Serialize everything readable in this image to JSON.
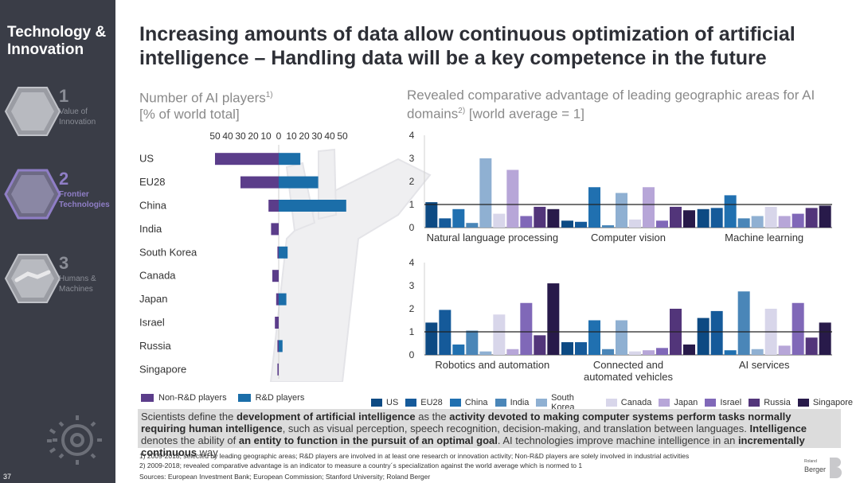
{
  "sidebar": {
    "title": "Technology & Innovation",
    "items": [
      {
        "num": "1",
        "label": "Value of Innovation"
      },
      {
        "num": "2",
        "label": "Frontier Technologies"
      },
      {
        "num": "3",
        "label": "Humans & Machines"
      }
    ],
    "page_number": "37"
  },
  "title": "Increasing amounts of data allow continuous optimization of artificial intelligence – Handling data will be a key competence in the future",
  "left_chart": {
    "title_line1": "Number of AI players",
    "title_sup": "1)",
    "title_line2": "[% of world total]"
  },
  "right_chart": {
    "title_line1": "Revealed comparative advantage of leading geographic areas for AI",
    "title_line2_a": "domains",
    "title_sup": "2)",
    "title_line2_b": " [world average = 1]"
  },
  "chart_data": [
    {
      "type": "bar",
      "orientation": "horizontal-diverging",
      "categories": [
        "US",
        "EU28",
        "China",
        "India",
        "South Korea",
        "Canada",
        "Japan",
        "Israel",
        "Russia",
        "Singapore"
      ],
      "axis_ticks": [
        "50",
        "40",
        "30",
        "20",
        "10",
        "0",
        "10",
        "20",
        "30",
        "40",
        "50"
      ],
      "xlim": [
        -50,
        50
      ],
      "series": [
        {
          "name": "Non-R&D players",
          "color": "#5b3d8a",
          "values": [
            50,
            30,
            8,
            6,
            1,
            5,
            2,
            3,
            1,
            1
          ]
        },
        {
          "name": "R&D players",
          "color": "#1b6ea9",
          "values": [
            17,
            31,
            53,
            0,
            7,
            0,
            6,
            0,
            3,
            0
          ]
        }
      ]
    },
    {
      "type": "bar",
      "categories": [
        "Natural language processing",
        "Computer vision",
        "Machine learning",
        "Robotics and automation",
        "Connected and automated vehicles",
        "AI services"
      ],
      "ylim": [
        0,
        4
      ],
      "yticks": [
        "0",
        "1",
        "2",
        "3",
        "4"
      ],
      "reference_line": 1,
      "series": [
        {
          "name": "US",
          "color": "#0d4a83",
          "values": [
            1.1,
            0.3,
            0.8,
            1.4,
            0.55,
            1.6
          ]
        },
        {
          "name": "EU28",
          "color": "#155a9a",
          "values": [
            0.4,
            0.25,
            0.85,
            1.95,
            0.55,
            1.9
          ]
        },
        {
          "name": "China",
          "color": "#2070b0",
          "values": [
            0.8,
            1.75,
            1.4,
            0.45,
            1.5,
            0.2
          ]
        },
        {
          "name": "India",
          "color": "#4a86b8",
          "values": [
            0.2,
            0.1,
            0.4,
            1.05,
            0.25,
            2.75
          ]
        },
        {
          "name": "South Korea",
          "color": "#8fb0d2",
          "values": [
            3.0,
            1.5,
            0.5,
            0.15,
            1.5,
            0.25
          ]
        },
        {
          "name": "Canada",
          "color": "#d8d6ea",
          "values": [
            0.6,
            0.35,
            0.9,
            1.75,
            0.15,
            2.0
          ]
        },
        {
          "name": "Japan",
          "color": "#b7a6d8",
          "values": [
            2.5,
            1.75,
            0.5,
            0.25,
            0.2,
            0.4
          ]
        },
        {
          "name": "Israel",
          "color": "#8068b8",
          "values": [
            0.5,
            0.3,
            0.6,
            2.25,
            0.3,
            2.25
          ]
        },
        {
          "name": "Russia",
          "color": "#52357a",
          "values": [
            0.9,
            0.9,
            0.85,
            0.85,
            2.0,
            0.75
          ]
        },
        {
          "name": "Singapore",
          "color": "#281a4a",
          "values": [
            0.8,
            0.75,
            0.95,
            3.1,
            0.45,
            1.4
          ]
        }
      ]
    }
  ],
  "definition": {
    "p1": "Scientists define the ",
    "b1": "development of artificial intelligence",
    "p2": " as the ",
    "b2": "activity devoted to making computer systems perform tasks normally requiring human intelligence",
    "p3": ", such as visual perception, speech recognition, decision-making, and translation between languages. ",
    "b3": "Intelligence",
    "p4": " denotes the ability of ",
    "b4": "an entity to function in the pursuit of an optimal goal",
    "p5": ". AI technologies improve machine intelligence in an ",
    "b5": "incrementally continuous",
    "p6": " way"
  },
  "footnotes": {
    "f1": "1) 2009-2018; selected by leading geographic areas; R&D players are involved in at least one research or innovation activity; Non-R&D players are solely involved in industrial activities",
    "f2": "2) 2009-2018; revealed comparative advantage is an indicator to measure a country´s specialization against the world average which is normed to 1",
    "sources": "Sources: European Investment Bank; European Commission; Stanford University; Roland Berger"
  },
  "logo": {
    "line1": "Roland",
    "line2": "Berger"
  }
}
